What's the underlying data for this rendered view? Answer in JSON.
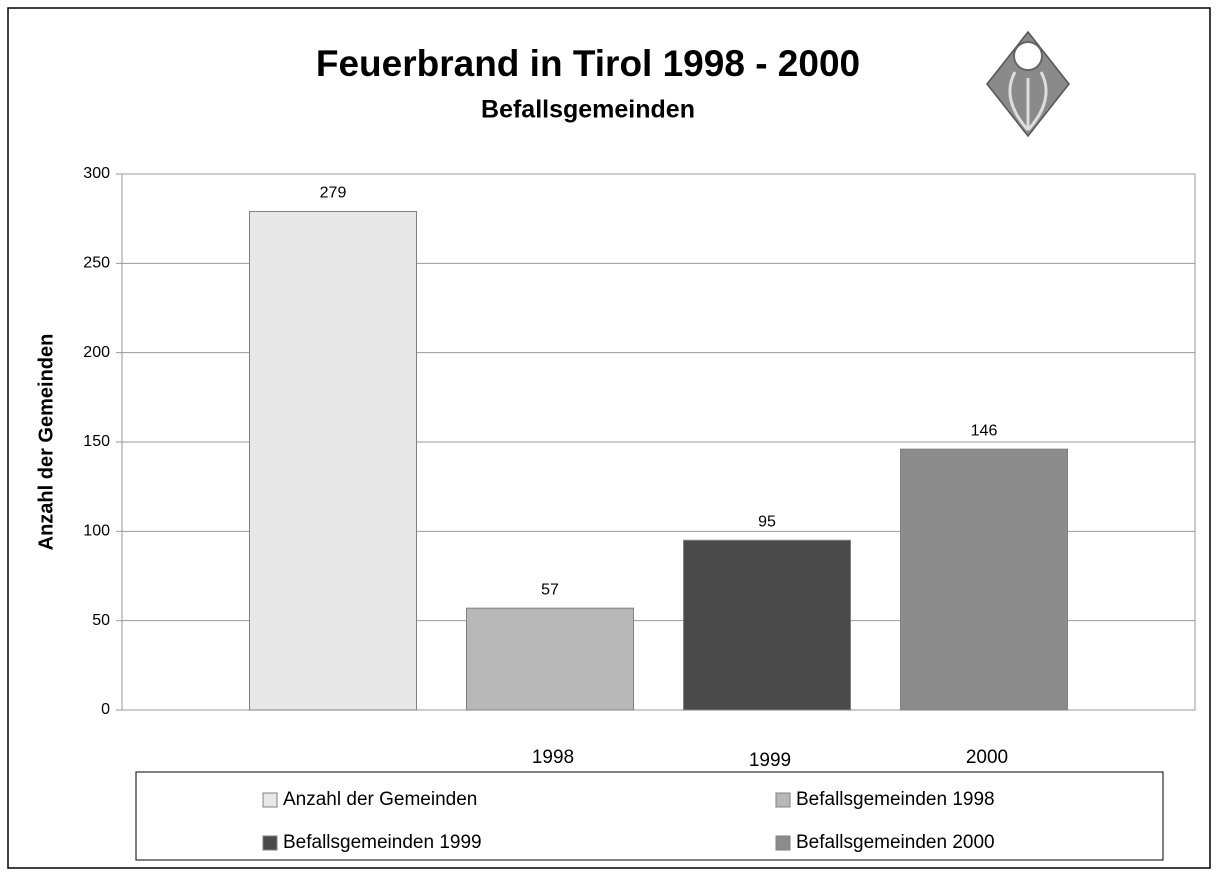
{
  "chart_data": {
    "type": "bar",
    "title": "Feuerbrand in Tirol 1998 - 2000",
    "subtitle": "Befallsgemeinden",
    "y_label": "Anzahl der Gemeinden",
    "categories": [
      null,
      "1998",
      "1999",
      "2000"
    ],
    "series": [
      {
        "name": "Anzahl der Gemeinden",
        "color": "#e8e8e8",
        "values": [
          279,
          null,
          null,
          null
        ]
      },
      {
        "name": "Befallsgemeinden 1998",
        "color": "#b8b8b8",
        "values": [
          null,
          57,
          null,
          null
        ]
      },
      {
        "name": "Befallsgemeinden 1999",
        "color": "#4a4a4a",
        "values": [
          null,
          null,
          95,
          null
        ]
      },
      {
        "name": "Befallsgemeinden 2000",
        "color": "#8c8c8c",
        "values": [
          null,
          null,
          null,
          146
        ]
      }
    ],
    "ylim": [
      0,
      300
    ],
    "yticks": [
      0,
      50,
      100,
      150,
      200,
      250,
      300
    ],
    "grid": true,
    "legend": "bottom"
  }
}
